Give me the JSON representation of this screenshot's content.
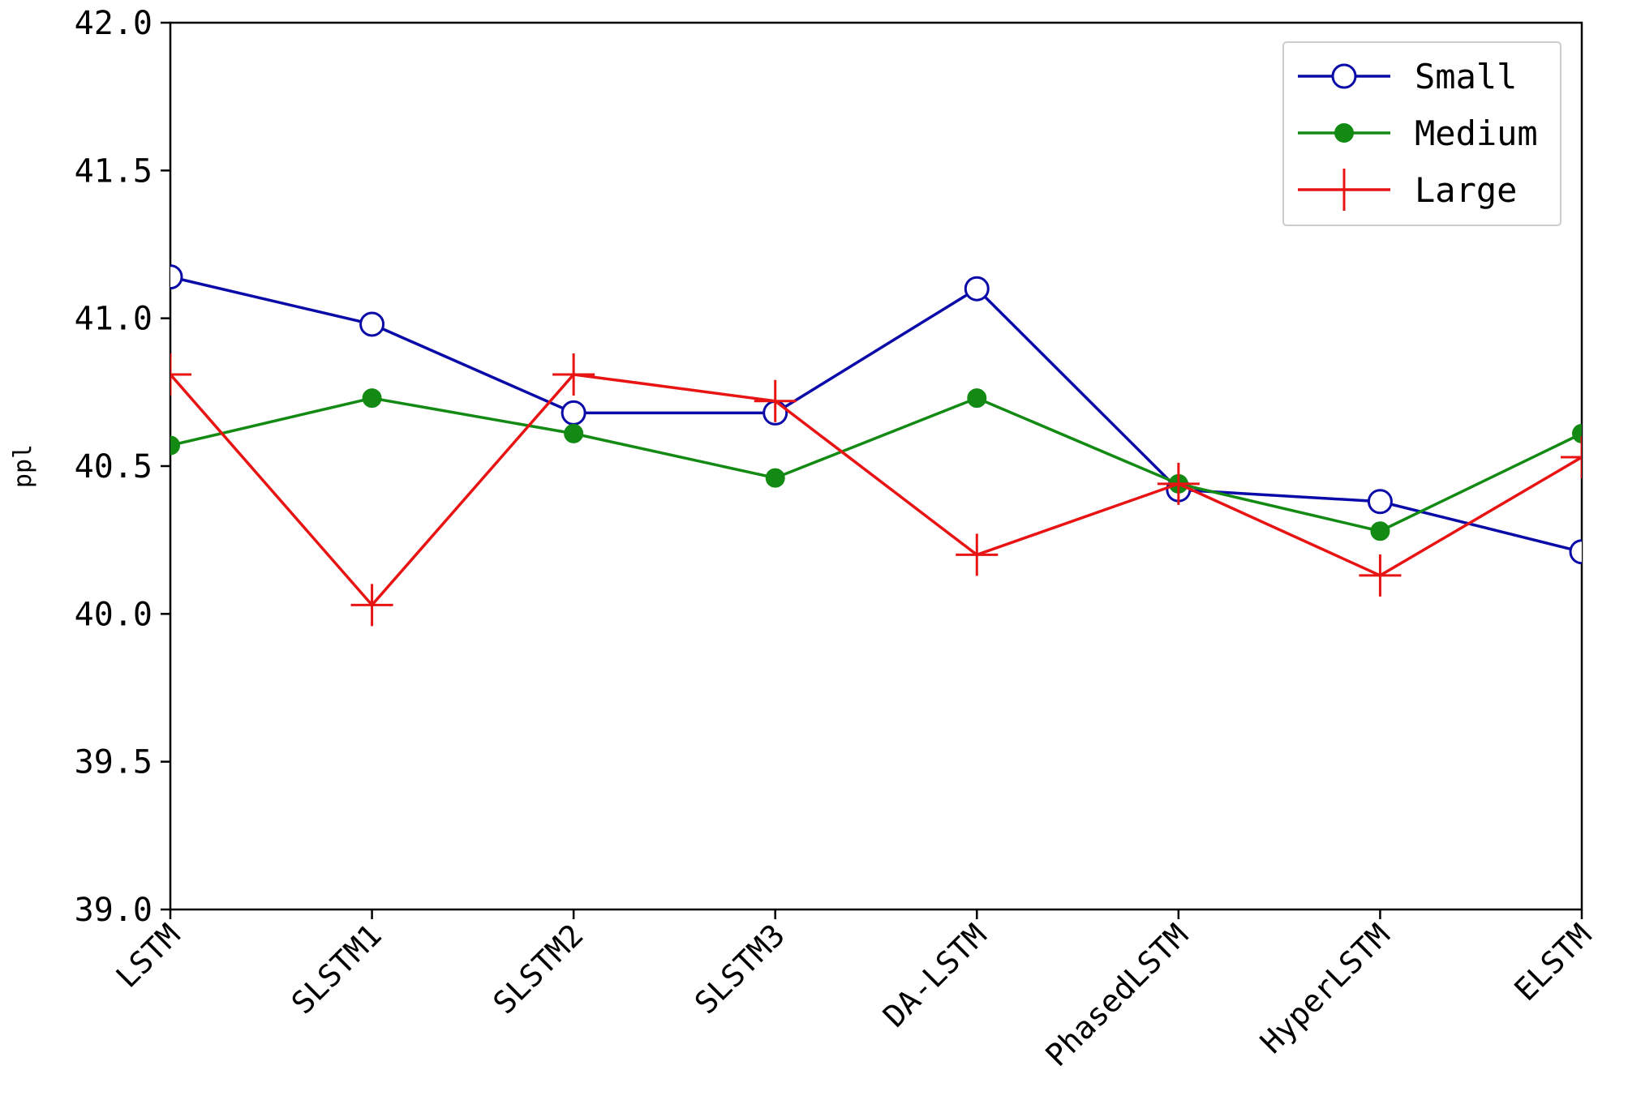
{
  "chart_data": {
    "type": "line",
    "title": "",
    "xlabel": "",
    "ylabel": "ppl",
    "categories": [
      "LSTM",
      "SLSTM1",
      "SLSTM2",
      "SLSTM3",
      "DA-LSTM",
      "PhasedLSTM",
      "HyperLSTM",
      "ELSTM"
    ],
    "ylim": [
      39.0,
      42.0
    ],
    "yticks": [
      "39.0",
      "39.5",
      "40.0",
      "40.5",
      "41.0",
      "41.5",
      "42.0"
    ],
    "grid": false,
    "legend_position": "top-right",
    "series": [
      {
        "name": "Small",
        "color": "#0a0aa8",
        "marker": "open-circle",
        "values": [
          41.14,
          40.98,
          40.68,
          40.68,
          41.1,
          40.42,
          40.38,
          40.21
        ]
      },
      {
        "name": "Medium",
        "color": "#138a13",
        "marker": "filled-circle",
        "values": [
          40.57,
          40.73,
          40.61,
          40.46,
          40.73,
          40.44,
          40.28,
          40.61
        ]
      },
      {
        "name": "Large",
        "color": "#e81414",
        "marker": "plus",
        "values": [
          40.81,
          40.03,
          40.81,
          40.72,
          40.2,
          40.44,
          40.13,
          40.53
        ]
      }
    ]
  }
}
